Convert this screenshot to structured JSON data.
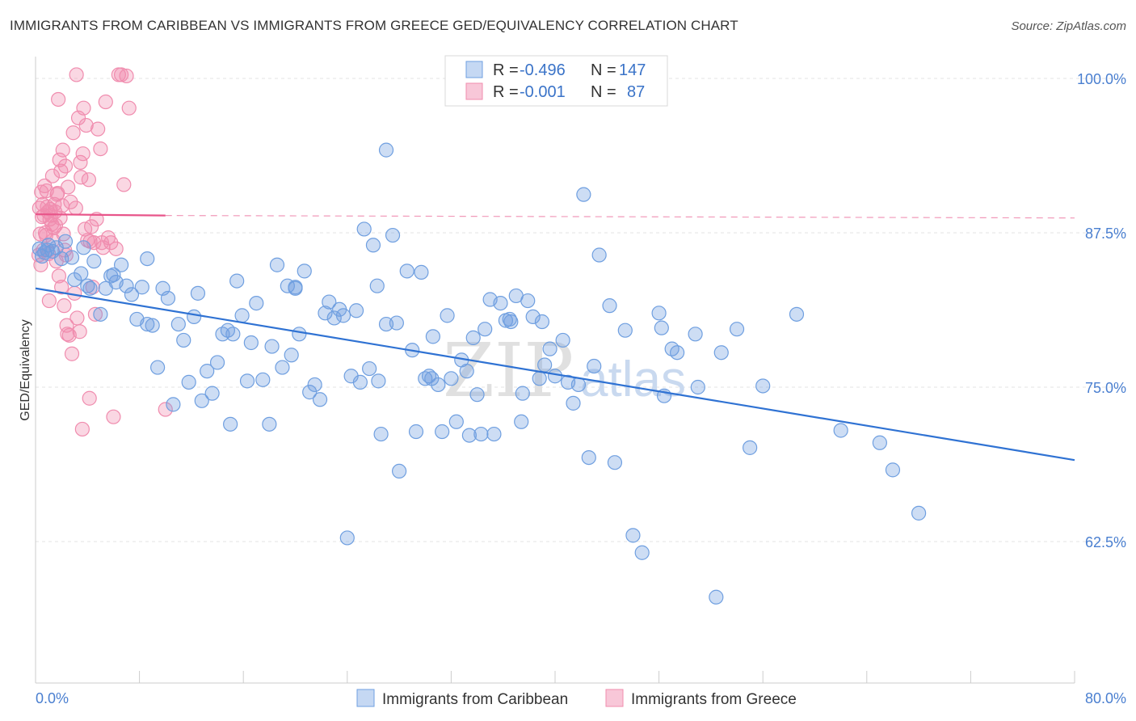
{
  "title": "IMMIGRANTS FROM CARIBBEAN VS IMMIGRANTS FROM GREECE GED/EQUIVALENCY CORRELATION CHART",
  "source": "Source: ZipAtlas.com",
  "watermark": {
    "zip": "ZIP",
    "atlas": "atlas"
  },
  "colors": {
    "blue": "#6f9fe0",
    "blue_line": "#2f72d3",
    "pink": "#f08cae",
    "pink_line": "#e8558a",
    "axis_text": "#4a7fd0"
  },
  "legend": {
    "rows": [
      {
        "r_label": "R =",
        "r_value": "-0.496",
        "n_label": "N =",
        "n_value": "147"
      },
      {
        "r_label": "R =",
        "r_value": "-0.001",
        "n_label": "N =",
        "n_value": "87"
      }
    ]
  },
  "chart_data": {
    "type": "scatter",
    "title": "IMMIGRANTS FROM CARIBBEAN VS IMMIGRANTS FROM GREECE GED/EQUIVALENCY CORRELATION CHART",
    "xlabel": "",
    "ylabel": "GED/Equivalency",
    "xlim": [
      0,
      80
    ],
    "ylim": [
      51.5,
      102
    ],
    "x_tick_labels": [
      "0.0%",
      "80.0%"
    ],
    "y_ticks": [
      62.5,
      75.0,
      87.5,
      100.0
    ],
    "y_tick_labels": [
      "62.5%",
      "75.0%",
      "87.5%",
      "100.0%"
    ],
    "legend_position": "bottom-center",
    "series": [
      {
        "name": "Immigrants from Caribbean",
        "color": "blue",
        "R": -0.496,
        "N": 147,
        "trend": {
          "x": [
            0,
            80
          ],
          "y": [
            83.0,
            69.1
          ],
          "style": "solid"
        },
        "points": [
          [
            0.3,
            86.2
          ],
          [
            0.5,
            85.6
          ],
          [
            0.7,
            85.9
          ],
          [
            1.0,
            86.5
          ],
          [
            1.3,
            86.0
          ],
          [
            1.6,
            86.3
          ],
          [
            2.0,
            85.4
          ],
          [
            2.3,
            86.8
          ],
          [
            2.8,
            85.5
          ],
          [
            3.0,
            83.7
          ],
          [
            3.5,
            84.2
          ],
          [
            4.0,
            83.2
          ],
          [
            4.5,
            85.2
          ],
          [
            5.0,
            80.9
          ],
          [
            5.4,
            83.0
          ],
          [
            5.8,
            84.0
          ],
          [
            6.2,
            83.5
          ],
          [
            6.6,
            84.9
          ],
          [
            7.0,
            83.2
          ],
          [
            7.4,
            82.5
          ],
          [
            7.8,
            80.5
          ],
          [
            8.2,
            83.1
          ],
          [
            8.6,
            85.4
          ],
          [
            9.0,
            80.0
          ],
          [
            9.4,
            76.6
          ],
          [
            9.8,
            83.0
          ],
          [
            10.2,
            82.2
          ],
          [
            10.6,
            73.6
          ],
          [
            11.0,
            80.1
          ],
          [
            11.4,
            78.8
          ],
          [
            11.8,
            75.4
          ],
          [
            12.2,
            80.7
          ],
          [
            12.5,
            82.6
          ],
          [
            12.8,
            73.9
          ],
          [
            13.2,
            76.3
          ],
          [
            13.6,
            74.5
          ],
          [
            14.0,
            77.0
          ],
          [
            14.4,
            79.3
          ],
          [
            14.8,
            79.6
          ],
          [
            15.0,
            72.0
          ],
          [
            15.5,
            83.6
          ],
          [
            15.9,
            80.8
          ],
          [
            16.3,
            75.5
          ],
          [
            16.6,
            78.6
          ],
          [
            17.0,
            81.8
          ],
          [
            17.5,
            75.6
          ],
          [
            18.0,
            72.0
          ],
          [
            18.2,
            78.3
          ],
          [
            18.6,
            84.9
          ],
          [
            19.0,
            76.6
          ],
          [
            19.4,
            83.2
          ],
          [
            19.7,
            77.6
          ],
          [
            20.0,
            83.1
          ],
          [
            20.3,
            79.3
          ],
          [
            20.7,
            84.4
          ],
          [
            21.1,
            74.6
          ],
          [
            21.5,
            75.2
          ],
          [
            21.9,
            74.0
          ],
          [
            22.3,
            81.0
          ],
          [
            22.6,
            81.9
          ],
          [
            23.0,
            80.6
          ],
          [
            23.4,
            81.3
          ],
          [
            23.7,
            80.8
          ],
          [
            24.0,
            62.8
          ],
          [
            24.3,
            75.9
          ],
          [
            24.7,
            81.2
          ],
          [
            25.0,
            75.4
          ],
          [
            25.3,
            87.8
          ],
          [
            25.7,
            76.5
          ],
          [
            26.0,
            86.5
          ],
          [
            26.3,
            83.2
          ],
          [
            26.6,
            71.2
          ],
          [
            27.0,
            94.2
          ],
          [
            27.5,
            87.3
          ],
          [
            27.8,
            80.2
          ],
          [
            28.0,
            68.2
          ],
          [
            28.6,
            84.4
          ],
          [
            29.0,
            78.0
          ],
          [
            29.3,
            71.4
          ],
          [
            29.7,
            84.3
          ],
          [
            30.0,
            75.7
          ],
          [
            30.3,
            75.9
          ],
          [
            30.6,
            79.1
          ],
          [
            31.0,
            75.2
          ],
          [
            31.3,
            71.4
          ],
          [
            31.7,
            80.8
          ],
          [
            32.0,
            75.7
          ],
          [
            32.4,
            72.2
          ],
          [
            32.8,
            77.2
          ],
          [
            33.2,
            76.3
          ],
          [
            33.7,
            79.0
          ],
          [
            34.0,
            74.4
          ],
          [
            34.3,
            71.2
          ],
          [
            34.6,
            79.7
          ],
          [
            35.0,
            82.1
          ],
          [
            35.3,
            71.2
          ],
          [
            35.8,
            81.8
          ],
          [
            36.2,
            80.4
          ],
          [
            36.6,
            80.3
          ],
          [
            37.0,
            82.4
          ],
          [
            37.4,
            72.2
          ],
          [
            37.9,
            82.0
          ],
          [
            38.3,
            80.7
          ],
          [
            38.8,
            75.7
          ],
          [
            39.2,
            76.8
          ],
          [
            39.6,
            78.1
          ],
          [
            40.0,
            75.9
          ],
          [
            40.6,
            78.8
          ],
          [
            41.0,
            75.4
          ],
          [
            41.4,
            73.7
          ],
          [
            41.8,
            75.2
          ],
          [
            42.2,
            90.6
          ],
          [
            42.6,
            69.3
          ],
          [
            43.0,
            76.7
          ],
          [
            43.4,
            85.7
          ],
          [
            44.2,
            81.6
          ],
          [
            44.6,
            68.9
          ],
          [
            45.4,
            79.6
          ],
          [
            46.0,
            63.0
          ],
          [
            46.7,
            61.6
          ],
          [
            48.0,
            81.0
          ],
          [
            48.2,
            79.8
          ],
          [
            48.4,
            74.3
          ],
          [
            49.0,
            78.1
          ],
          [
            49.4,
            77.8
          ],
          [
            50.8,
            79.3
          ],
          [
            51.0,
            75.0
          ],
          [
            52.8,
            77.8
          ],
          [
            54.0,
            79.7
          ],
          [
            55.0,
            70.1
          ],
          [
            56.0,
            75.1
          ],
          [
            58.6,
            80.9
          ],
          [
            62.0,
            71.5
          ],
          [
            65.0,
            70.5
          ],
          [
            66.0,
            68.3
          ],
          [
            68.0,
            64.8
          ],
          [
            52.4,
            58.0
          ],
          [
            20.0,
            83.0
          ],
          [
            3.7,
            86.3
          ],
          [
            4.2,
            83.0
          ],
          [
            6.0,
            84.1
          ],
          [
            8.6,
            80.1
          ],
          [
            15.2,
            79.3
          ],
          [
            27.0,
            80.1
          ],
          [
            26.4,
            75.5
          ],
          [
            30.5,
            75.7
          ],
          [
            33.4,
            71.1
          ],
          [
            36.5,
            80.5
          ],
          [
            39.0,
            80.3
          ],
          [
            37.5,
            74.5
          ],
          [
            0.9,
            86.1
          ]
        ]
      },
      {
        "name": "Immigrants from Greece",
        "color": "pink",
        "R": -0.001,
        "N": 87,
        "trend": {
          "x": [
            0,
            10
          ],
          "y": [
            89.0,
            88.9
          ],
          "style": "solid",
          "extended": {
            "x": [
              10,
              80
            ],
            "y": [
              88.9,
              88.7
            ],
            "style": "dashed"
          }
        },
        "points": [
          [
            0.3,
            89.5
          ],
          [
            0.5,
            88.8
          ],
          [
            0.7,
            91.3
          ],
          [
            0.9,
            89.6
          ],
          [
            1.1,
            88.6
          ],
          [
            1.3,
            92.1
          ],
          [
            1.5,
            89.2
          ],
          [
            1.7,
            90.7
          ],
          [
            1.9,
            88.7
          ],
          [
            2.1,
            94.2
          ],
          [
            2.3,
            92.9
          ],
          [
            2.5,
            91.2
          ],
          [
            2.7,
            90.0
          ],
          [
            2.9,
            95.6
          ],
          [
            3.1,
            89.5
          ],
          [
            3.3,
            96.8
          ],
          [
            3.5,
            92.0
          ],
          [
            3.7,
            97.6
          ],
          [
            3.9,
            96.2
          ],
          [
            4.1,
            91.8
          ],
          [
            4.3,
            88.0
          ],
          [
            4.5,
            86.7
          ],
          [
            4.7,
            88.6
          ],
          [
            0.4,
            84.9
          ],
          [
            0.6,
            86.1
          ],
          [
            0.8,
            87.3
          ],
          [
            1.0,
            85.8
          ],
          [
            1.2,
            88.9
          ],
          [
            1.4,
            87.9
          ],
          [
            1.6,
            85.2
          ],
          [
            1.8,
            84.0
          ],
          [
            2.0,
            83.1
          ],
          [
            2.2,
            81.6
          ],
          [
            2.4,
            80.0
          ],
          [
            2.6,
            79.2
          ],
          [
            2.8,
            77.7
          ],
          [
            3.0,
            82.6
          ],
          [
            3.2,
            80.6
          ],
          [
            3.4,
            79.5
          ],
          [
            3.6,
            71.6
          ],
          [
            3.8,
            87.8
          ],
          [
            4.0,
            86.9
          ],
          [
            4.2,
            86.8
          ],
          [
            4.4,
            83.1
          ],
          [
            4.6,
            80.9
          ],
          [
            4.8,
            95.9
          ],
          [
            5.0,
            94.3
          ],
          [
            5.2,
            86.3
          ],
          [
            5.4,
            98.1
          ],
          [
            5.6,
            87.1
          ],
          [
            5.8,
            86.7
          ],
          [
            6.0,
            72.6
          ],
          [
            6.2,
            86.2
          ],
          [
            6.4,
            100.3
          ],
          [
            6.6,
            100.3
          ],
          [
            6.8,
            91.4
          ],
          [
            7.0,
            100.2
          ],
          [
            7.2,
            97.6
          ],
          [
            10.0,
            73.2
          ],
          [
            0.35,
            87.4
          ],
          [
            0.45,
            90.8
          ],
          [
            0.55,
            89.8
          ],
          [
            0.65,
            88.9
          ],
          [
            0.75,
            87.5
          ],
          [
            0.85,
            90.9
          ],
          [
            0.95,
            89.2
          ],
          [
            1.05,
            82.0
          ],
          [
            1.15,
            89.4
          ],
          [
            1.25,
            88.2
          ],
          [
            1.35,
            86.9
          ],
          [
            1.45,
            89.8
          ],
          [
            1.55,
            88.1
          ],
          [
            1.65,
            90.6
          ],
          [
            1.75,
            98.3
          ],
          [
            1.85,
            93.4
          ],
          [
            1.95,
            92.5
          ],
          [
            2.05,
            89.7
          ],
          [
            2.15,
            87.4
          ],
          [
            2.25,
            86.1
          ],
          [
            2.35,
            85.7
          ],
          [
            3.15,
            100.3
          ],
          [
            3.45,
            93.2
          ],
          [
            3.65,
            93.9
          ],
          [
            4.15,
            74.1
          ],
          [
            5.1,
            86.7
          ],
          [
            0.25,
            85.7
          ],
          [
            2.45,
            79.3
          ]
        ]
      }
    ]
  },
  "bottom_legend": [
    {
      "label": "Immigrants from Caribbean",
      "color": "blue"
    },
    {
      "label": "Immigrants from Greece",
      "color": "pink"
    }
  ]
}
